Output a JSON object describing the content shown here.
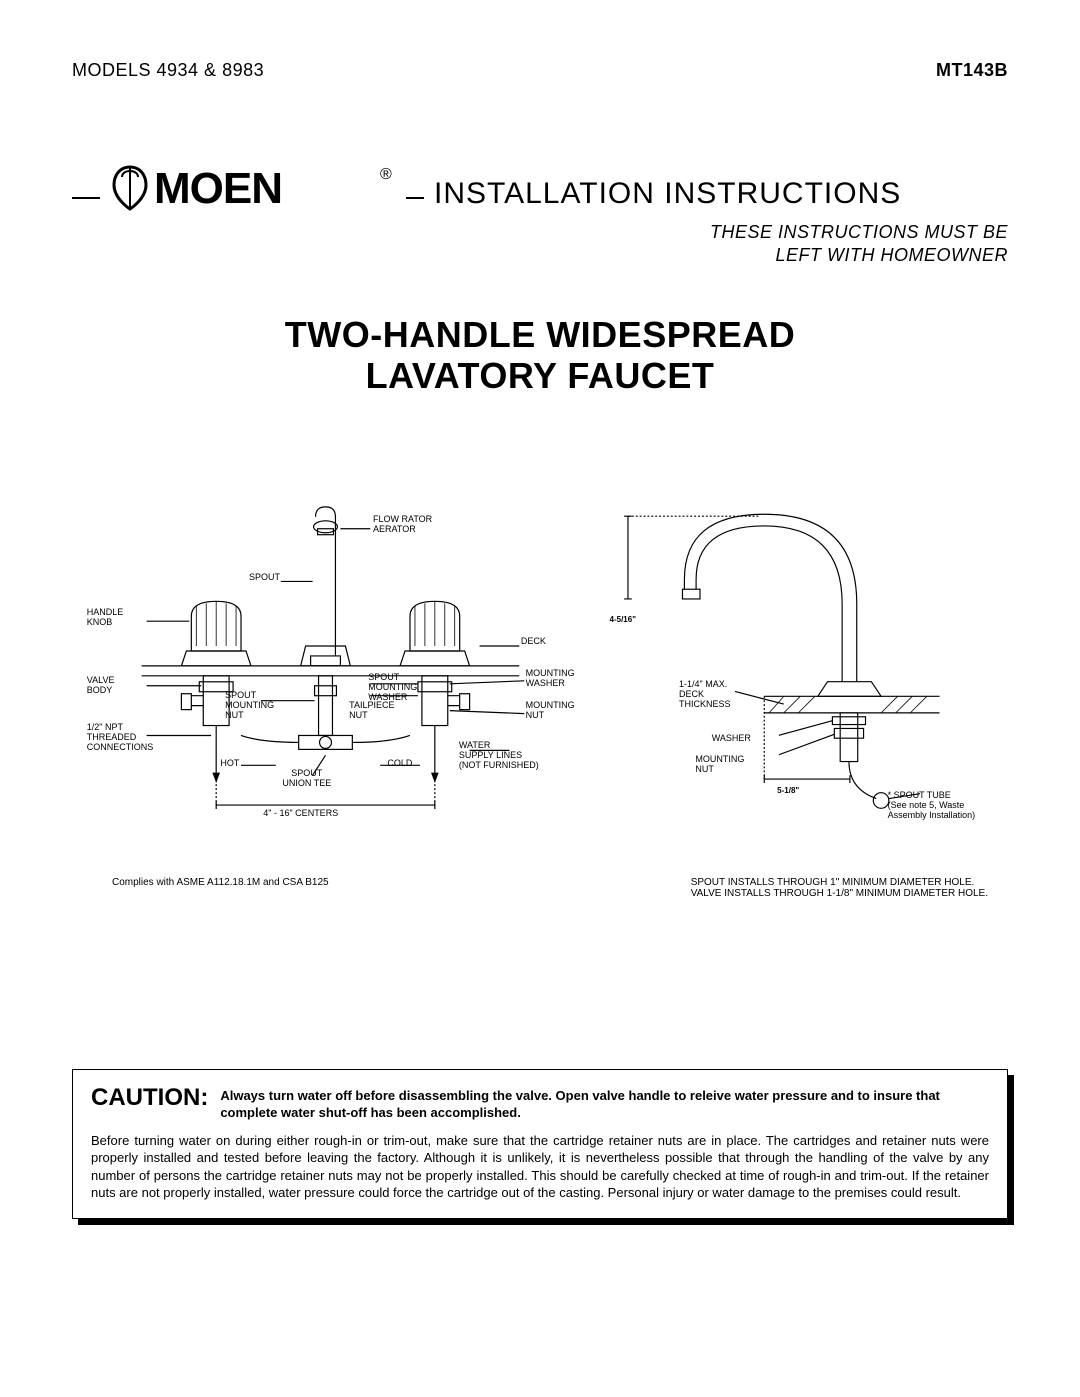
{
  "header": {
    "models_label": "MODELS 4934 & 8983",
    "doc_number": "MT143B",
    "brand": "MOEN",
    "install_title": "INSTALLATION INSTRUCTIONS",
    "subtitle_line1": "THESE INSTRUCTIONS MUST BE",
    "subtitle_line2": "LEFT WITH HOMEOWNER"
  },
  "product": {
    "title_line1": "TWO-HANDLE WIDESPREAD",
    "title_line2": "LAVATORY FAUCET"
  },
  "diagram_left": {
    "labels": {
      "flow_rator": "FLOW RATOR",
      "aerator": "AERATOR",
      "spout": "SPOUT",
      "handle_knob": "HANDLE\nKNOB",
      "deck": "DECK",
      "valve_body": "VALVE\nBODY",
      "spout_mounting_washer": "SPOUT\nMOUNTING\nWASHER",
      "mounting_washer": "MOUNTING\nWASHER",
      "spout_mounting_nut": "SPOUT\nMOUNTING\nNUT",
      "tailpiece_nut": "TAILPIECE\nNUT",
      "mounting_nut": "MOUNTING\nNUT",
      "npt": "1/2\" NPT\nTHREADED\nCONNECTIONS",
      "hot": "HOT",
      "cold": "COLD",
      "spout_union_tee": "SPOUT\nUNION TEE",
      "water_supply": "WATER\nSUPPLY LINES\n(NOT FURNISHED)",
      "centers": "4\" - 16\" CENTERS"
    }
  },
  "diagram_right": {
    "labels": {
      "dim_top": "4-5/16\"",
      "deck_thickness": "1-1/4\" MAX.\nDECK\nTHICKNESS",
      "washer": "WASHER",
      "mounting_nut": "MOUNTING\nNUT",
      "dim_bottom": "5-1/8\"",
      "spout_tube": "* SPOUT TUBE\n(See note 5, Waste\nAssembly Installation)"
    }
  },
  "compliance": {
    "left": "Complies with ASME A112.18.1M and CSA B125",
    "right_line1": "SPOUT INSTALLS THROUGH 1\" MINIMUM DIAMETER HOLE.",
    "right_line2": "VALVE INSTALLS THROUGH 1-1/8\" MINIMUM DIAMETER HOLE."
  },
  "caution": {
    "label": "CAUTION:",
    "bold_text": "Always turn water off before disassembling the valve. Open valve handle to releive water pressure and to insure that complete water shut-off has been accomplished.",
    "body_text": "Before turning water on during either rough-in or trim-out, make sure that the cartridge retainer nuts are in place. The cartridges and retainer nuts were properly installed and tested before leaving the factory. Although it is unlikely, it is nevertheless possible that through the handling of the valve by any number of persons the cartridge retainer nuts may not be properly installed. This should be carefully checked at time of rough-in and trim-out. If the retainer nuts are not properly installed, water pressure could force the cartridge out of the casting. Personal injury or water damage to the premises could result."
  },
  "style": {
    "text_color": "#000000",
    "bg_color": "#ffffff",
    "rule_weight": 2.5,
    "diagram_stroke": "#000000",
    "diagram_stroke_width": 1.2
  }
}
